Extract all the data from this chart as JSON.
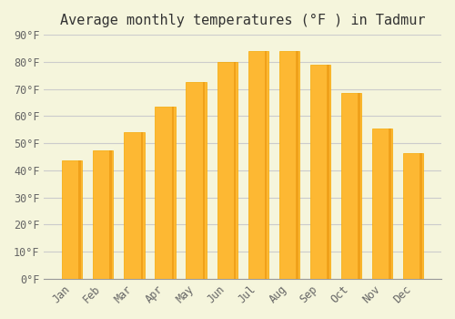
{
  "title": "Average monthly temperatures (°F ) in Tadmur",
  "months": [
    "Jan",
    "Feb",
    "Mar",
    "Apr",
    "May",
    "Jun",
    "Jul",
    "Aug",
    "Sep",
    "Oct",
    "Nov",
    "Dec"
  ],
  "values": [
    43.5,
    47.5,
    54.0,
    63.5,
    72.5,
    80.0,
    84.0,
    84.0,
    79.0,
    68.5,
    55.5,
    46.5
  ],
  "bar_color_main": "#FDB833",
  "bar_color_edge": "#F5A800",
  "background_color": "#F5F5DC",
  "grid_color": "#CCCCCC",
  "ylim": [
    0,
    90
  ],
  "yticks": [
    0,
    10,
    20,
    30,
    40,
    50,
    60,
    70,
    80,
    90
  ],
  "ytick_labels": [
    "0°F",
    "10°F",
    "20°F",
    "30°F",
    "40°F",
    "50°F",
    "60°F",
    "70°F",
    "80°F",
    "90°F"
  ],
  "title_fontsize": 11,
  "tick_fontsize": 8.5,
  "xlabel_rotation": 45
}
